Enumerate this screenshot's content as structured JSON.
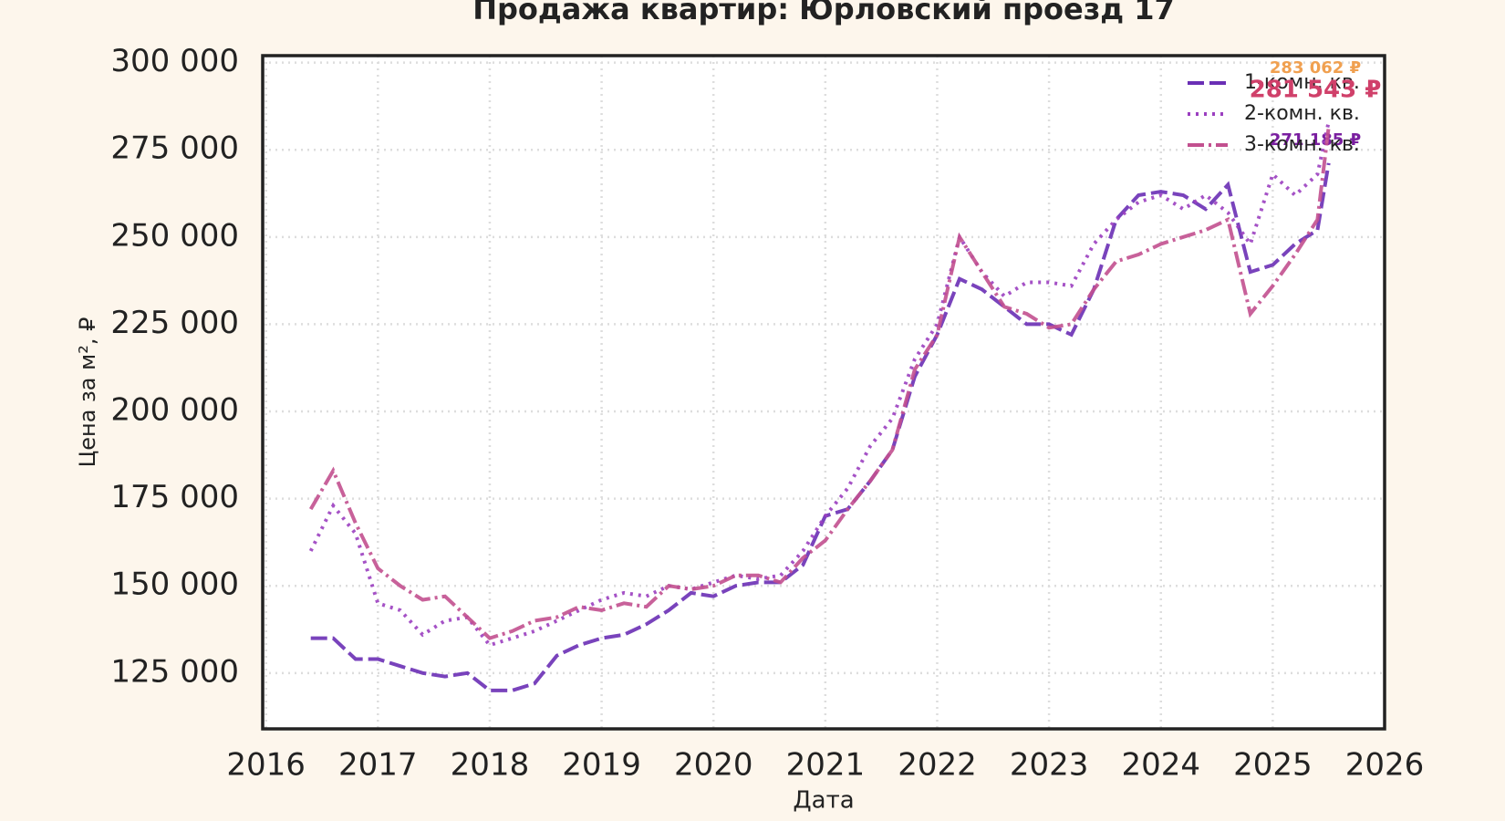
{
  "chart_data": {
    "type": "line",
    "title": "Продажа квартир: Юрловский проезд 17",
    "x_label": "Дата",
    "y_label": "Цена за м², ₽",
    "x": [
      2016.4,
      2016.6,
      2016.8,
      2017.0,
      2017.2,
      2017.4,
      2017.6,
      2017.8,
      2018.0,
      2018.2,
      2018.4,
      2018.6,
      2018.8,
      2019.0,
      2019.2,
      2019.4,
      2019.6,
      2019.8,
      2020.0,
      2020.2,
      2020.4,
      2020.6,
      2020.8,
      2021.0,
      2021.2,
      2021.4,
      2021.6,
      2021.8,
      2022.0,
      2022.2,
      2022.4,
      2022.6,
      2022.8,
      2023.0,
      2023.2,
      2023.4,
      2023.6,
      2023.8,
      2024.0,
      2024.2,
      2024.4,
      2024.6,
      2024.8,
      2025.0,
      2025.2,
      2025.4,
      2025.5
    ],
    "series": [
      {
        "name": "1-комн. кв.",
        "color": "#6a2fb5",
        "dash": "18 6",
        "label_color": "#7a1fa0",
        "values": [
          135000,
          135000,
          129000,
          129000,
          127000,
          125000,
          124000,
          125000,
          120000,
          120000,
          122000,
          130000,
          133000,
          135000,
          136000,
          139000,
          143000,
          148000,
          147000,
          150000,
          151000,
          151000,
          156000,
          170000,
          172000,
          180000,
          189000,
          210000,
          222000,
          238000,
          235000,
          230000,
          225000,
          225000,
          222000,
          235000,
          255000,
          262000,
          263000,
          262000,
          258000,
          265000,
          240000,
          242000,
          248000,
          252000,
          271185
        ],
        "value_labels": [
          null,
          null,
          null,
          null,
          null,
          null,
          null,
          null,
          null,
          null,
          null,
          null,
          null,
          null,
          null,
          null,
          null,
          null,
          null,
          null,
          null,
          null,
          null,
          null,
          null,
          null,
          null,
          null,
          null,
          null,
          null,
          null,
          null,
          null,
          null,
          null,
          null,
          null,
          null,
          null,
          null,
          null,
          null,
          null,
          null,
          null,
          "271 185 ₽"
        ]
      },
      {
        "name": "2-комн. кв.",
        "color": "#9b3fc0",
        "dash": "3 6",
        "label_color": "#f0a050",
        "values": [
          160000,
          173000,
          165000,
          145000,
          143000,
          136000,
          140000,
          141000,
          133000,
          135000,
          137000,
          140000,
          143000,
          146000,
          148000,
          147000,
          150000,
          149000,
          151000,
          153000,
          152000,
          153000,
          160000,
          170000,
          178000,
          190000,
          198000,
          215000,
          225000,
          250000,
          240000,
          233000,
          237000,
          237000,
          236000,
          248000,
          255000,
          260000,
          262000,
          258000,
          262000,
          257000,
          248000,
          268000,
          262000,
          268000,
          283062
        ],
        "value_labels": [
          null,
          null,
          null,
          null,
          null,
          null,
          null,
          null,
          null,
          null,
          null,
          null,
          null,
          null,
          null,
          null,
          null,
          null,
          null,
          null,
          null,
          null,
          null,
          null,
          null,
          null,
          null,
          null,
          null,
          null,
          null,
          null,
          null,
          null,
          null,
          null,
          null,
          null,
          null,
          null,
          null,
          null,
          null,
          null,
          null,
          null,
          "283 062 ₽"
        ]
      },
      {
        "name": "3-комн. кв.",
        "color": "#c2508f",
        "dash": "18 5 3 5",
        "label_color": "#d0406a",
        "values": [
          172000,
          183000,
          168000,
          155000,
          150000,
          146000,
          147000,
          141000,
          135000,
          137000,
          140000,
          141000,
          144000,
          143000,
          145000,
          144000,
          150000,
          149000,
          150000,
          153000,
          153000,
          151000,
          158000,
          163000,
          172000,
          180000,
          189000,
          212000,
          222000,
          250000,
          240000,
          230000,
          228000,
          224000,
          225000,
          235000,
          243000,
          245000,
          248000,
          250000,
          252000,
          255000,
          228000,
          236000,
          245000,
          255000,
          281543
        ],
        "value_labels": [
          null,
          null,
          null,
          null,
          null,
          null,
          null,
          null,
          null,
          null,
          null,
          null,
          null,
          null,
          null,
          null,
          null,
          null,
          null,
          null,
          null,
          null,
          null,
          null,
          null,
          null,
          null,
          null,
          null,
          null,
          null,
          null,
          null,
          null,
          null,
          null,
          null,
          null,
          null,
          null,
          null,
          null,
          null,
          null,
          null,
          null,
          "281 543 ₽"
        ]
      }
    ],
    "xlim": [
      2015.97,
      2026.0
    ],
    "xticks": [
      2016,
      2017,
      2018,
      2019,
      2020,
      2021,
      2022,
      2023,
      2024,
      2025,
      2026
    ],
    "ylim": [
      109000,
      302000
    ],
    "yticks": [
      {
        "value": 125000,
        "label": "125 000"
      },
      {
        "value": 150000,
        "label": "150 000"
      },
      {
        "value": 175000,
        "label": "175 000"
      },
      {
        "value": 200000,
        "label": "200 000"
      },
      {
        "value": 225000,
        "label": "225 000"
      },
      {
        "value": 250000,
        "label": "250 000"
      },
      {
        "value": 275000,
        "label": "275 000"
      },
      {
        "value": 300000,
        "label": "300 000"
      }
    ],
    "grid": true,
    "legend": "upper right"
  }
}
